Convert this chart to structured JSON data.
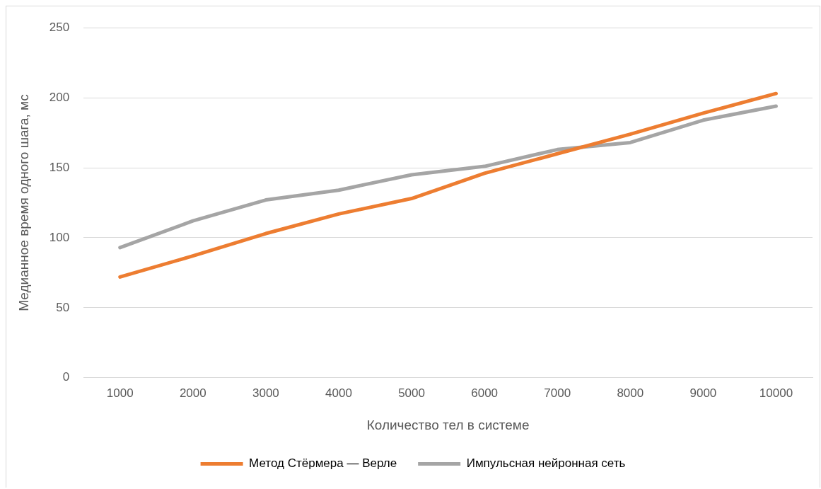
{
  "chart_data": {
    "type": "line",
    "xlabel": "Количество тел в системе",
    "ylabel": "Медианное время одного шага, мс",
    "categories": [
      "1000",
      "2000",
      "3000",
      "4000",
      "5000",
      "6000",
      "7000",
      "8000",
      "9000",
      "10000"
    ],
    "series": [
      {
        "name": "Метод Стёрмера — Верле",
        "color": "#ed7d31",
        "values": [
          72,
          87,
          103,
          117,
          128,
          146,
          160,
          174,
          189,
          203
        ]
      },
      {
        "name": "Импульсная нейронная сеть",
        "color": "#a5a5a5",
        "values": [
          93,
          112,
          127,
          134,
          145,
          151,
          163,
          168,
          184,
          194
        ]
      }
    ],
    "ylim": [
      0,
      250
    ],
    "yticks": [
      0,
      50,
      100,
      150,
      200,
      250
    ],
    "grid": "y",
    "legend": "bottom",
    "marker": "none",
    "line_style": "solid"
  }
}
